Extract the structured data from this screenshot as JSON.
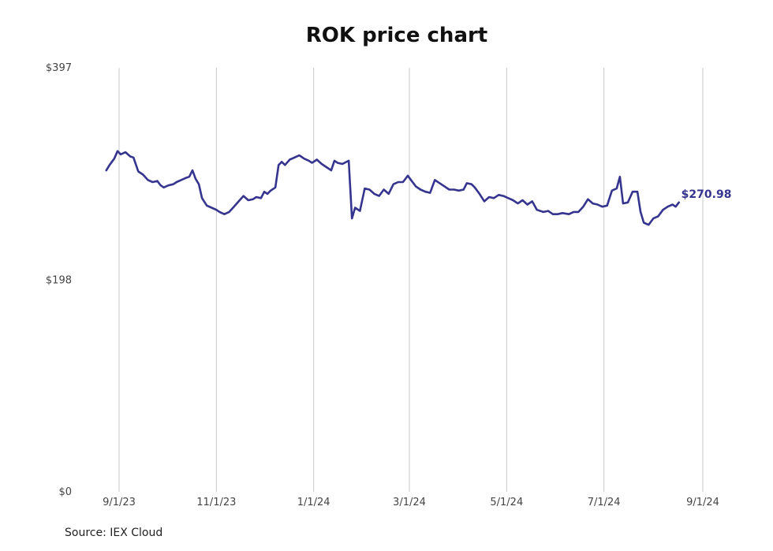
{
  "chart_data": {
    "type": "line",
    "title": "ROK price chart",
    "source": "Source: IEX Cloud",
    "accent_color": "#35348f",
    "grid": "vertical",
    "ylim": [
      0,
      397
    ],
    "y_ticks": [
      {
        "value": 0,
        "label": "$0"
      },
      {
        "value": 198,
        "label": "$198"
      },
      {
        "value": 397,
        "label": "$397"
      }
    ],
    "x_ticks": [
      {
        "date": "2023-09-01",
        "label": "9/1/23"
      },
      {
        "date": "2023-11-01",
        "label": "11/1/23"
      },
      {
        "date": "2024-01-01",
        "label": "1/1/24"
      },
      {
        "date": "2024-03-01",
        "label": "3/1/24"
      },
      {
        "date": "2024-05-01",
        "label": "5/1/24"
      },
      {
        "date": "2024-07-01",
        "label": "7/1/24"
      },
      {
        "date": "2024-09-01",
        "label": "9/1/24"
      }
    ],
    "last_value_label": "$270.98",
    "series": [
      {
        "values": [
          [
            "2023-08-24",
            301
          ],
          [
            "2023-08-26",
            306
          ],
          [
            "2023-08-29",
            312
          ],
          [
            "2023-08-31",
            319
          ],
          [
            "2023-09-02",
            316
          ],
          [
            "2023-09-05",
            318
          ],
          [
            "2023-09-08",
            314
          ],
          [
            "2023-09-10",
            313
          ],
          [
            "2023-09-13",
            300
          ],
          [
            "2023-09-16",
            297
          ],
          [
            "2023-09-19",
            292
          ],
          [
            "2023-09-22",
            290
          ],
          [
            "2023-09-25",
            291
          ],
          [
            "2023-09-27",
            287
          ],
          [
            "2023-09-29",
            285
          ],
          [
            "2023-10-02",
            287
          ],
          [
            "2023-10-05",
            288
          ],
          [
            "2023-10-07",
            290
          ],
          [
            "2023-10-10",
            292
          ],
          [
            "2023-10-13",
            294
          ],
          [
            "2023-10-15",
            295
          ],
          [
            "2023-10-17",
            301
          ],
          [
            "2023-10-19",
            293
          ],
          [
            "2023-10-21",
            288
          ],
          [
            "2023-10-23",
            275
          ],
          [
            "2023-10-26",
            268
          ],
          [
            "2023-10-29",
            266
          ],
          [
            "2023-11-01",
            264
          ],
          [
            "2023-11-03",
            262
          ],
          [
            "2023-11-06",
            260
          ],
          [
            "2023-11-09",
            262
          ],
          [
            "2023-11-12",
            267
          ],
          [
            "2023-11-15",
            272
          ],
          [
            "2023-11-18",
            277
          ],
          [
            "2023-11-21",
            273
          ],
          [
            "2023-11-24",
            274
          ],
          [
            "2023-11-26",
            276
          ],
          [
            "2023-11-29",
            275
          ],
          [
            "2023-12-01",
            281
          ],
          [
            "2023-12-03",
            279
          ],
          [
            "2023-12-05",
            282
          ],
          [
            "2023-12-08",
            285
          ],
          [
            "2023-12-10",
            306
          ],
          [
            "2023-12-12",
            309
          ],
          [
            "2023-12-14",
            306
          ],
          [
            "2023-12-17",
            311
          ],
          [
            "2023-12-20",
            313
          ],
          [
            "2023-12-23",
            315
          ],
          [
            "2023-12-26",
            312
          ],
          [
            "2023-12-29",
            310
          ],
          [
            "2023-12-31",
            308
          ],
          [
            "2024-01-03",
            311
          ],
          [
            "2024-01-06",
            307
          ],
          [
            "2024-01-09",
            304
          ],
          [
            "2024-01-12",
            301
          ],
          [
            "2024-01-14",
            310
          ],
          [
            "2024-01-16",
            308
          ],
          [
            "2024-01-19",
            307
          ],
          [
            "2024-01-23",
            310
          ],
          [
            "2024-01-25",
            256
          ],
          [
            "2024-01-27",
            266
          ],
          [
            "2024-01-30",
            263
          ],
          [
            "2024-02-02",
            284
          ],
          [
            "2024-02-05",
            283
          ],
          [
            "2024-02-08",
            279
          ],
          [
            "2024-02-11",
            277
          ],
          [
            "2024-02-14",
            283
          ],
          [
            "2024-02-17",
            279
          ],
          [
            "2024-02-20",
            288
          ],
          [
            "2024-02-23",
            290
          ],
          [
            "2024-02-26",
            290
          ],
          [
            "2024-02-29",
            296
          ],
          [
            "2024-03-02",
            292
          ],
          [
            "2024-03-05",
            286
          ],
          [
            "2024-03-08",
            283
          ],
          [
            "2024-03-11",
            281
          ],
          [
            "2024-03-14",
            280
          ],
          [
            "2024-03-17",
            292
          ],
          [
            "2024-03-20",
            289
          ],
          [
            "2024-03-23",
            286
          ],
          [
            "2024-03-26",
            283
          ],
          [
            "2024-03-29",
            283
          ],
          [
            "2024-04-01",
            282
          ],
          [
            "2024-04-04",
            283
          ],
          [
            "2024-04-06",
            289
          ],
          [
            "2024-04-09",
            288
          ],
          [
            "2024-04-11",
            285
          ],
          [
            "2024-04-14",
            279
          ],
          [
            "2024-04-17",
            272
          ],
          [
            "2024-04-20",
            276
          ],
          [
            "2024-04-23",
            275
          ],
          [
            "2024-04-26",
            278
          ],
          [
            "2024-04-29",
            277
          ],
          [
            "2024-05-02",
            275
          ],
          [
            "2024-05-05",
            273
          ],
          [
            "2024-05-08",
            270
          ],
          [
            "2024-05-11",
            273
          ],
          [
            "2024-05-14",
            269
          ],
          [
            "2024-05-17",
            272
          ],
          [
            "2024-05-20",
            264
          ],
          [
            "2024-05-24",
            262
          ],
          [
            "2024-05-27",
            263
          ],
          [
            "2024-05-30",
            260
          ],
          [
            "2024-06-02",
            260
          ],
          [
            "2024-06-05",
            261
          ],
          [
            "2024-06-09",
            260
          ],
          [
            "2024-06-12",
            262
          ],
          [
            "2024-06-15",
            262
          ],
          [
            "2024-06-18",
            267
          ],
          [
            "2024-06-21",
            274
          ],
          [
            "2024-06-24",
            270
          ],
          [
            "2024-06-27",
            269
          ],
          [
            "2024-06-30",
            267
          ],
          [
            "2024-07-03",
            268
          ],
          [
            "2024-07-06",
            282
          ],
          [
            "2024-07-09",
            284
          ],
          [
            "2024-07-11",
            295
          ],
          [
            "2024-07-13",
            270
          ],
          [
            "2024-07-16",
            271
          ],
          [
            "2024-07-19",
            281
          ],
          [
            "2024-07-22",
            281
          ],
          [
            "2024-07-24",
            262
          ],
          [
            "2024-07-26",
            252
          ],
          [
            "2024-07-29",
            250
          ],
          [
            "2024-08-01",
            256
          ],
          [
            "2024-08-04",
            258
          ],
          [
            "2024-08-07",
            264
          ],
          [
            "2024-08-10",
            267
          ],
          [
            "2024-08-13",
            269
          ],
          [
            "2024-08-15",
            267
          ],
          [
            "2024-08-17",
            271
          ]
        ]
      }
    ]
  }
}
